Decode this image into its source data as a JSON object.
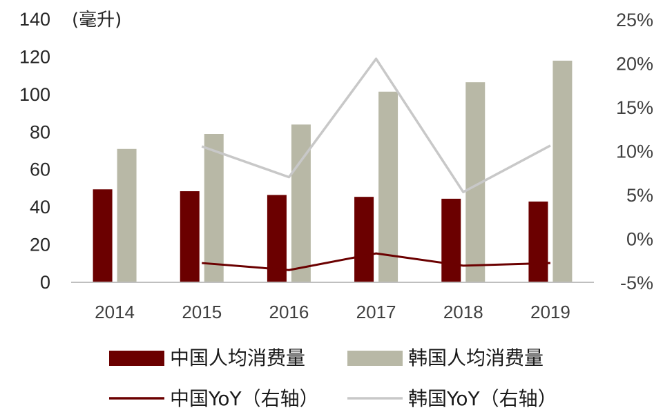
{
  "chart_data": {
    "type": "bar",
    "categories": [
      "2014",
      "2015",
      "2016",
      "2017",
      "2018",
      "2019"
    ],
    "series": [
      {
        "name": "中国人均消费量",
        "kind": "bar",
        "axis": "left",
        "color": "#6b0000",
        "values": [
          49.5,
          48.5,
          46.5,
          45.5,
          44.5,
          43
        ]
      },
      {
        "name": "韩国人均消费量",
        "kind": "bar",
        "axis": "left",
        "color": "#b8b8a6",
        "values": [
          71,
          79,
          84,
          101.5,
          106.5,
          118
        ]
      },
      {
        "name": "中国YoY（右轴）",
        "kind": "line",
        "axis": "right",
        "color": "#6b0000",
        "values": [
          null,
          -2.8,
          -3.6,
          -1.7,
          -3.1,
          -2.8
        ]
      },
      {
        "name": "韩国YoY（右轴）",
        "kind": "line",
        "axis": "right",
        "color": "#c8c8c8",
        "values": [
          null,
          10.5,
          7.0,
          20.5,
          5.3,
          10.6
        ]
      }
    ],
    "y_left": {
      "min": 0,
      "max": 140,
      "ticks": [
        0,
        20,
        40,
        60,
        80,
        100,
        120,
        140
      ],
      "unit": "(毫升)"
    },
    "y_right": {
      "min": -5,
      "max": 25,
      "ticks": [
        -5,
        0,
        5,
        10,
        15,
        20,
        25
      ],
      "tick_labels": [
        "-5%",
        "0%",
        "5%",
        "10%",
        "15%",
        "20%",
        "25%"
      ]
    },
    "grid": false,
    "legend_position": "bottom"
  }
}
